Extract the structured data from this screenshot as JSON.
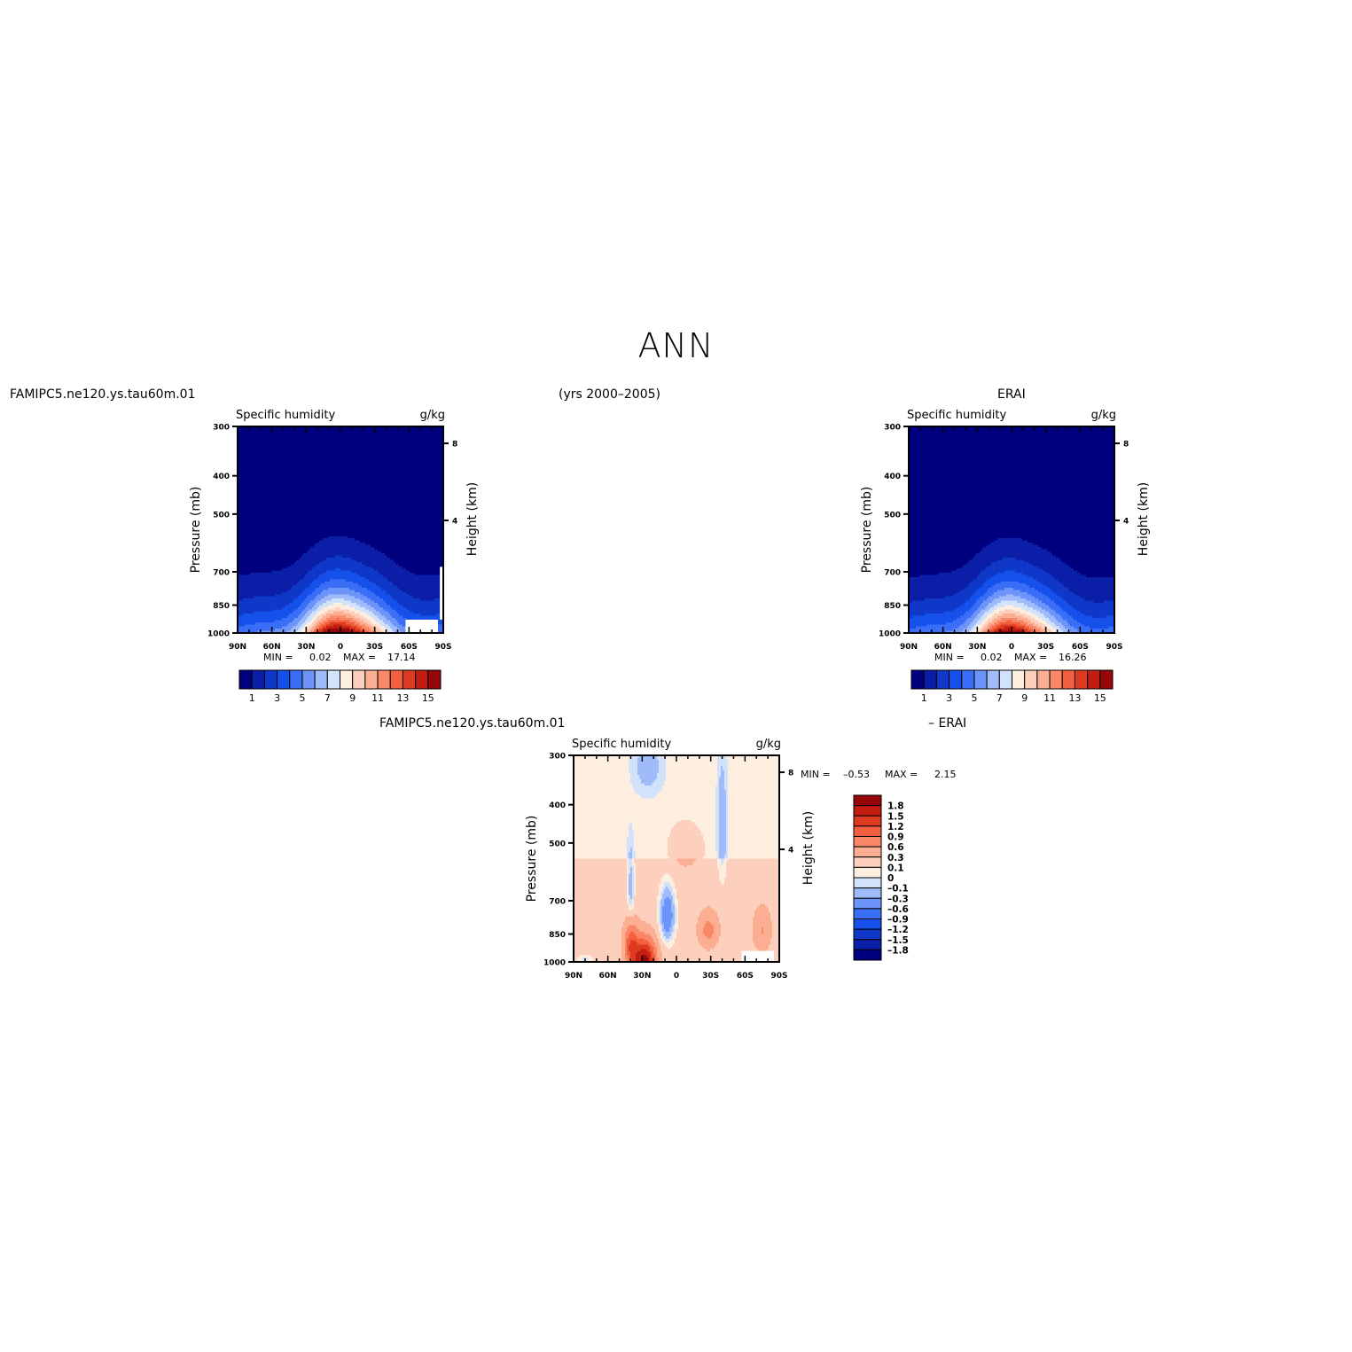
{
  "title": "ANN",
  "period": "(yrs 2000–2005)",
  "left_header": "FAMIPC5.ne120.ys.tau60m.01",
  "right_header": "ERAI",
  "bottom_header_left": "FAMIPC5.ne120.ys.tau60m.01",
  "bottom_header_right": "– ERAI",
  "chart_data": [
    {
      "type": "heatmap",
      "name": "model",
      "left_title": "Specific humidity",
      "units": "g/kg",
      "ylabel": "Pressure (mb)",
      "ylabel_right": "Height (km)",
      "x_ticks": [
        "90N",
        "60N",
        "30N",
        "0",
        "30S",
        "60S",
        "90S"
      ],
      "xlim": [
        90,
        -90
      ],
      "y_ticks": [
        300,
        400,
        500,
        700,
        850,
        1000
      ],
      "ylim": [
        1000,
        300
      ],
      "height_ticks": [
        8,
        4
      ],
      "min_label": "MIN =",
      "min": "0.02",
      "max_label": "MAX =",
      "max": "17.14",
      "peak": 17.14,
      "colorbar_labels": [
        "1",
        "3",
        "5",
        "7",
        "9",
        "11",
        "13",
        "15"
      ],
      "colorbar_colors": [
        "#00007f",
        "#0a1ea8",
        "#0f37c8",
        "#1650ea",
        "#3a6ef7",
        "#6d94f8",
        "#a0bbf9",
        "#d2e2fb",
        "#fdeee0",
        "#fcd0bc",
        "#fcae92",
        "#fa8866",
        "#f3603f",
        "#de3a22",
        "#c21d10",
        "#96060a"
      ]
    },
    {
      "type": "heatmap",
      "name": "obs",
      "left_title": "Specific humidity",
      "units": "g/kg",
      "ylabel": "Pressure (mb)",
      "ylabel_right": "Height (km)",
      "x_ticks": [
        "90N",
        "60N",
        "30N",
        "0",
        "30S",
        "60S",
        "90S"
      ],
      "xlim": [
        90,
        -90
      ],
      "y_ticks": [
        300,
        400,
        500,
        700,
        850,
        1000
      ],
      "ylim": [
        1000,
        300
      ],
      "height_ticks": [
        8,
        4
      ],
      "min_label": "MIN =",
      "min": "0.02",
      "max_label": "MAX =",
      "max": "16.26",
      "peak": 16.26,
      "colorbar_labels": [
        "1",
        "3",
        "5",
        "7",
        "9",
        "11",
        "13",
        "15"
      ],
      "colorbar_colors": [
        "#00007f",
        "#0a1ea8",
        "#0f37c8",
        "#1650ea",
        "#3a6ef7",
        "#6d94f8",
        "#a0bbf9",
        "#d2e2fb",
        "#fdeee0",
        "#fcd0bc",
        "#fcae92",
        "#fa8866",
        "#f3603f",
        "#de3a22",
        "#c21d10",
        "#96060a"
      ]
    },
    {
      "type": "heatmap",
      "name": "difference",
      "left_title": "Specific humidity",
      "units": "g/kg",
      "ylabel": "Pressure (mb)",
      "ylabel_right": "Height (km)",
      "x_ticks": [
        "90N",
        "60N",
        "30N",
        "0",
        "30S",
        "60S",
        "90S"
      ],
      "xlim": [
        90,
        -90
      ],
      "y_ticks": [
        300,
        400,
        500,
        700,
        850,
        1000
      ],
      "ylim": [
        1000,
        300
      ],
      "height_ticks": [
        8,
        4
      ],
      "min_label": "MIN =",
      "min": "–0.53",
      "max_label": "MAX =",
      "max": "2.15",
      "colorbar_labels": [
        "1.8",
        "1.5",
        "1.2",
        "0.9",
        "0.6",
        "0.3",
        "0.1",
        "0",
        "–0.1",
        "–0.3",
        "–0.6",
        "–0.9",
        "–1.2",
        "–1.5",
        "–1.8"
      ],
      "colorbar_colors": [
        "#96060a",
        "#c21d10",
        "#de3a22",
        "#f3603f",
        "#fa8866",
        "#fcae92",
        "#fcd0bc",
        "#fdeee0",
        "#d2e2fb",
        "#a0bbf9",
        "#6d94f8",
        "#3a6ef7",
        "#1650ea",
        "#0f37c8",
        "#0a1ea8",
        "#00007f"
      ]
    }
  ]
}
